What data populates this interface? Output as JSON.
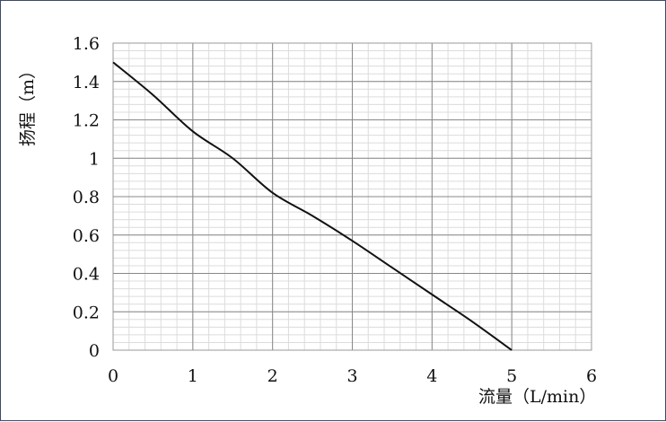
{
  "chart_data": {
    "type": "line",
    "xlabel": "流量（L/min）",
    "ylabel": "扬程（m）",
    "xlim": [
      0,
      6
    ],
    "ylim": [
      0,
      1.6
    ],
    "x_ticks": [
      "0",
      "1",
      "2",
      "3",
      "4",
      "5",
      "6"
    ],
    "y_ticks": [
      "0",
      "0.2",
      "0.4",
      "0.6",
      "0.8",
      "1",
      "1.2",
      "1.4",
      "1.6"
    ],
    "grid": true,
    "series": [
      {
        "x": [
          0,
          0.5,
          1,
          1.5,
          2,
          2.5,
          3,
          3.5,
          4,
          4.5,
          5
        ],
        "y": [
          1.5,
          1.33,
          1.14,
          1.0,
          0.82,
          0.7,
          0.57,
          0.43,
          0.29,
          0.15,
          0.0
        ],
        "color": "#111111"
      }
    ]
  }
}
